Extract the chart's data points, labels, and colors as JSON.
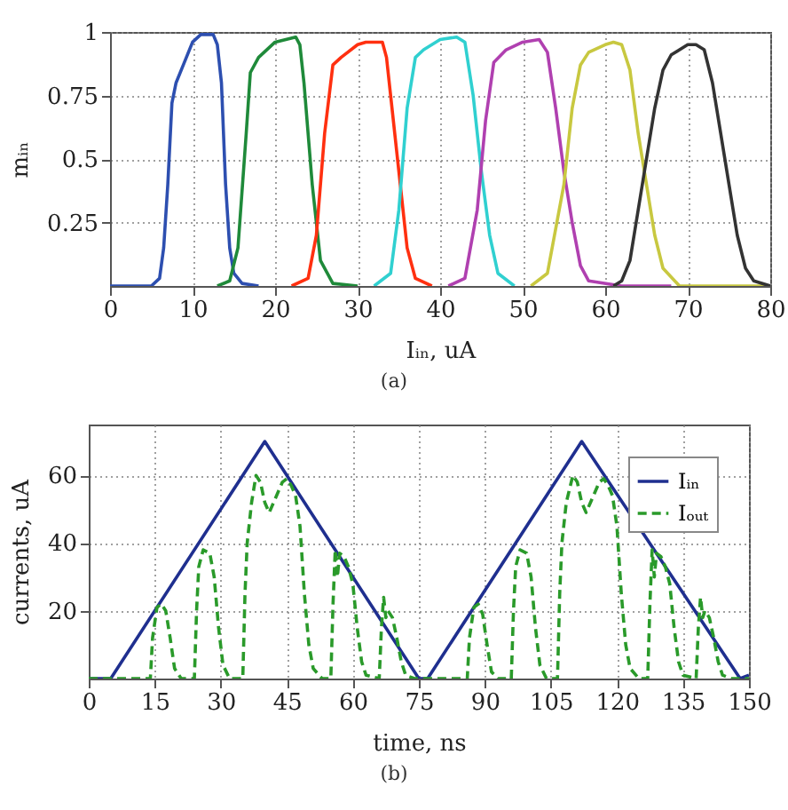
{
  "chart_data": [
    {
      "type": "line",
      "xlabel": "Iᵢₙ, uA",
      "ylabel": "mᵢₙ",
      "xlim": [
        0,
        80
      ],
      "ylim": [
        0,
        1
      ],
      "xticks": [
        0,
        10,
        20,
        30,
        40,
        50,
        60,
        70,
        80
      ],
      "yticks": [
        0.25,
        0.5,
        0.75,
        1
      ],
      "grid": true,
      "legend": false,
      "annotations": [
        "(a)"
      ],
      "series": [
        {
          "color": "#2d4fb0",
          "x": [
            0,
            5,
            6,
            6.5,
            7,
            7.5,
            8,
            9,
            10,
            11,
            12.5,
            13,
            13.5,
            14,
            14.5,
            15,
            16,
            18
          ],
          "values": [
            0,
            0,
            0.03,
            0.15,
            0.4,
            0.72,
            0.8,
            0.88,
            0.96,
            0.99,
            0.99,
            0.95,
            0.8,
            0.4,
            0.15,
            0.05,
            0.01,
            0
          ]
        },
        {
          "color": "#1f8a3a",
          "x": [
            13,
            14.5,
            15.5,
            16.5,
            17,
            18,
            20,
            22.5,
            23,
            23.5,
            24.5,
            25.5,
            27,
            30
          ],
          "values": [
            0,
            0.02,
            0.15,
            0.6,
            0.84,
            0.9,
            0.96,
            0.98,
            0.95,
            0.8,
            0.4,
            0.1,
            0.01,
            0
          ]
        },
        {
          "color": "#ff3010",
          "x": [
            22,
            24,
            25,
            26,
            27,
            28,
            30,
            31,
            33,
            33.5,
            34,
            35,
            36,
            37,
            39
          ],
          "values": [
            0,
            0.03,
            0.2,
            0.6,
            0.87,
            0.9,
            0.95,
            0.96,
            0.96,
            0.9,
            0.75,
            0.45,
            0.15,
            0.03,
            0
          ]
        },
        {
          "color": "#30d0d0",
          "x": [
            32,
            34,
            35,
            36,
            37,
            38,
            40,
            42,
            43,
            44,
            45,
            46,
            47,
            49
          ],
          "values": [
            0,
            0.05,
            0.3,
            0.7,
            0.9,
            0.93,
            0.97,
            0.98,
            0.96,
            0.75,
            0.45,
            0.2,
            0.05,
            0
          ]
        },
        {
          "color": "#b040b0",
          "x": [
            41,
            43,
            44.5,
            45.5,
            46.5,
            48,
            50,
            52,
            53,
            54,
            55,
            56,
            57,
            58,
            62,
            68
          ],
          "values": [
            0,
            0.03,
            0.3,
            0.65,
            0.88,
            0.93,
            0.96,
            0.97,
            0.92,
            0.7,
            0.45,
            0.25,
            0.08,
            0.02,
            0,
            0
          ]
        },
        {
          "color": "#c8c840",
          "x": [
            51,
            53,
            55,
            56,
            57,
            58,
            60,
            61,
            62,
            63,
            64,
            65,
            66,
            67,
            69,
            80
          ],
          "values": [
            0,
            0.05,
            0.4,
            0.7,
            0.87,
            0.92,
            0.95,
            0.96,
            0.95,
            0.85,
            0.6,
            0.4,
            0.2,
            0.07,
            0,
            0
          ]
        },
        {
          "color": "#333333",
          "x": [
            61,
            62,
            63,
            64,
            65,
            66,
            67,
            68,
            70,
            71,
            72,
            73,
            74,
            75,
            76,
            77,
            78,
            80
          ],
          "values": [
            0,
            0.02,
            0.1,
            0.3,
            0.5,
            0.7,
            0.85,
            0.91,
            0.95,
            0.95,
            0.93,
            0.8,
            0.6,
            0.4,
            0.2,
            0.07,
            0.02,
            0
          ]
        }
      ]
    },
    {
      "type": "line",
      "xlabel": "time, ns",
      "ylabel": "currents, uA",
      "xlim": [
        0,
        150
      ],
      "ylim": [
        0,
        75
      ],
      "xticks": [
        0,
        15,
        30,
        45,
        60,
        75,
        90,
        105,
        120,
        135,
        150
      ],
      "yticks": [
        20,
        40,
        60
      ],
      "grid": true,
      "legend": "top right",
      "annotations": [
        "(b)"
      ],
      "series": [
        {
          "name": "Iᵢₙ",
          "color": "#1f2f8f",
          "line_style": "solid",
          "x": [
            0,
            5,
            40,
            75,
            77,
            112,
            148,
            150
          ],
          "values": [
            0,
            0,
            70,
            0,
            0,
            70,
            0,
            1
          ]
        },
        {
          "name": "Iₒᵤₜ",
          "color": "#2a9a2a",
          "line_style": "dashed",
          "x": [
            0,
            14,
            14.5,
            15.5,
            16.5,
            17.5,
            18.5,
            19.5,
            21,
            24,
            24.5,
            25,
            26,
            27.5,
            28.5,
            29.5,
            30.5,
            32,
            35,
            35.5,
            36,
            37,
            38,
            39,
            40,
            41,
            42,
            44,
            45,
            46,
            47,
            48,
            49,
            50,
            51,
            53,
            55,
            55.5,
            56,
            56.5,
            57,
            58,
            59,
            60,
            61,
            62,
            63,
            66,
            66.5,
            67,
            67.5,
            68,
            69,
            70,
            71,
            72,
            74,
            76,
            86,
            86.5,
            87.5,
            88.5,
            89.5,
            90.5,
            91.5,
            93,
            96,
            96.5,
            97,
            98,
            99.5,
            100.5,
            101.5,
            102.5,
            104,
            106.5,
            107,
            107.5,
            108.5,
            110,
            111,
            112,
            113,
            114,
            116,
            117,
            118,
            119,
            120,
            121,
            122,
            123,
            125,
            127,
            127.5,
            128,
            128.5,
            129,
            130,
            131,
            132,
            133,
            134,
            135,
            138,
            138.5,
            139,
            139.5,
            140,
            141,
            142,
            143,
            144,
            146,
            150
          ],
          "values": [
            0,
            0,
            12,
            21,
            22,
            20,
            12,
            3,
            0,
            0,
            20,
            33,
            38,
            37,
            30,
            15,
            4,
            0,
            0,
            25,
            40,
            52,
            60,
            58,
            52,
            49,
            52,
            58,
            59,
            57,
            54,
            45,
            25,
            10,
            3,
            0,
            0,
            22,
            38,
            30,
            37,
            36,
            33,
            28,
            15,
            5,
            1,
            0,
            15,
            24,
            18,
            20,
            18,
            12,
            5,
            1,
            0,
            0,
            0,
            12,
            21,
            22,
            19,
            10,
            2,
            0,
            0,
            20,
            33,
            38,
            37,
            30,
            15,
            4,
            0,
            0,
            25,
            40,
            52,
            60,
            58,
            52,
            49,
            52,
            58,
            59,
            57,
            54,
            45,
            25,
            10,
            3,
            0,
            0,
            22,
            38,
            30,
            37,
            36,
            33,
            28,
            15,
            5,
            1,
            0,
            15,
            24,
            18,
            20,
            18,
            12,
            5,
            1,
            0,
            0
          ]
        }
      ]
    }
  ]
}
